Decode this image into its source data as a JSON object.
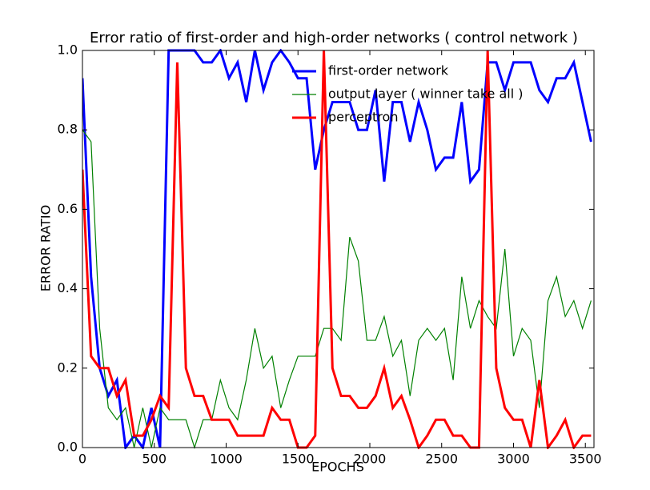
{
  "chart_data": {
    "type": "line",
    "title": "Error ratio of first-order and high-order networks ( control network )",
    "x_label": "EPOCHS",
    "y_label": "ERROR RATIO",
    "x": [
      0,
      60,
      120,
      180,
      240,
      300,
      360,
      420,
      480,
      540,
      600,
      660,
      720,
      780,
      840,
      900,
      960,
      1020,
      1080,
      1140,
      1200,
      1260,
      1320,
      1380,
      1440,
      1500,
      1560,
      1620,
      1680,
      1740,
      1800,
      1860,
      1920,
      1980,
      2040,
      2100,
      2160,
      2220,
      2280,
      2340,
      2400,
      2460,
      2520,
      2580,
      2640,
      2700,
      2760,
      2820,
      2880,
      2940,
      3000,
      3060,
      3120,
      3180,
      3240,
      3300,
      3360,
      3420,
      3480,
      3540
    ],
    "series": [
      {
        "name": "first-order network",
        "color": "#0000ff",
        "width": 3,
        "values": [
          0.93,
          0.43,
          0.2,
          0.13,
          0.17,
          0,
          0.03,
          0,
          0.1,
          0,
          1,
          1,
          1,
          1,
          0.97,
          0.97,
          1,
          0.93,
          0.97,
          0.87,
          1,
          0.9,
          0.97,
          1,
          0.97,
          0.93,
          0.93,
          0.7,
          0.8,
          0.87,
          0.87,
          0.87,
          0.8,
          0.8,
          0.9,
          0.67,
          0.87,
          0.87,
          0.77,
          0.87,
          0.8,
          0.7,
          0.73,
          0.73,
          0.87,
          0.67,
          0.7,
          0.97,
          0.97,
          0.9,
          0.97,
          0.97,
          0.97,
          0.9,
          0.87,
          0.93,
          0.93,
          0.97,
          0.87,
          0.77
        ]
      },
      {
        "name": "output layer ( winner take all )",
        "color": "#008000",
        "width": 1.2,
        "values": [
          0.8,
          0.77,
          0.3,
          0.1,
          0.07,
          0.1,
          0,
          0.1,
          0,
          0.1,
          0.07,
          0.07,
          0.07,
          0,
          0.07,
          0.07,
          0.17,
          0.1,
          0.07,
          0.17,
          0.3,
          0.2,
          0.23,
          0.1,
          0.17,
          0.23,
          0.23,
          0.23,
          0.3,
          0.3,
          0.27,
          0.53,
          0.47,
          0.27,
          0.27,
          0.33,
          0.23,
          0.27,
          0.13,
          0.27,
          0.3,
          0.27,
          0.3,
          0.17,
          0.43,
          0.3,
          0.37,
          0.33,
          0.3,
          0.5,
          0.23,
          0.3,
          0.27,
          0.1,
          0.37,
          0.43,
          0.33,
          0.37,
          0.3,
          0.37
        ]
      },
      {
        "name": "perceptron",
        "color": "#ff0000",
        "width": 3,
        "values": [
          0.7,
          0.23,
          0.2,
          0.2,
          0.13,
          0.17,
          0.03,
          0.03,
          0.07,
          0.13,
          0.1,
          0.97,
          0.2,
          0.13,
          0.13,
          0.07,
          0.07,
          0.07,
          0.03,
          0.03,
          0.03,
          0.03,
          0.1,
          0.07,
          0.07,
          0,
          0,
          0.03,
          1,
          0.2,
          0.13,
          0.13,
          0.1,
          0.1,
          0.13,
          0.2,
          0.1,
          0.13,
          0.07,
          0,
          0.03,
          0.07,
          0.07,
          0.03,
          0.03,
          0,
          0,
          1,
          0.2,
          0.1,
          0.07,
          0.07,
          0,
          0.17,
          0,
          0.03,
          0.07,
          0,
          0.03,
          0.03
        ]
      }
    ],
    "xlim": [
      0,
      3560
    ],
    "ylim": [
      0,
      1
    ],
    "xticks": [
      0,
      500,
      1000,
      1500,
      2000,
      2500,
      3000,
      3500
    ],
    "yticks": [
      {
        "value": 0,
        "label": "0.0"
      },
      {
        "value": 0.2,
        "label": "0.2"
      },
      {
        "value": 0.4,
        "label": "0.4"
      },
      {
        "value": 0.6,
        "label": "0.6"
      },
      {
        "value": 0.8,
        "label": "0.8"
      },
      {
        "value": 1,
        "label": "1.0"
      }
    ],
    "legend": "upper right"
  }
}
